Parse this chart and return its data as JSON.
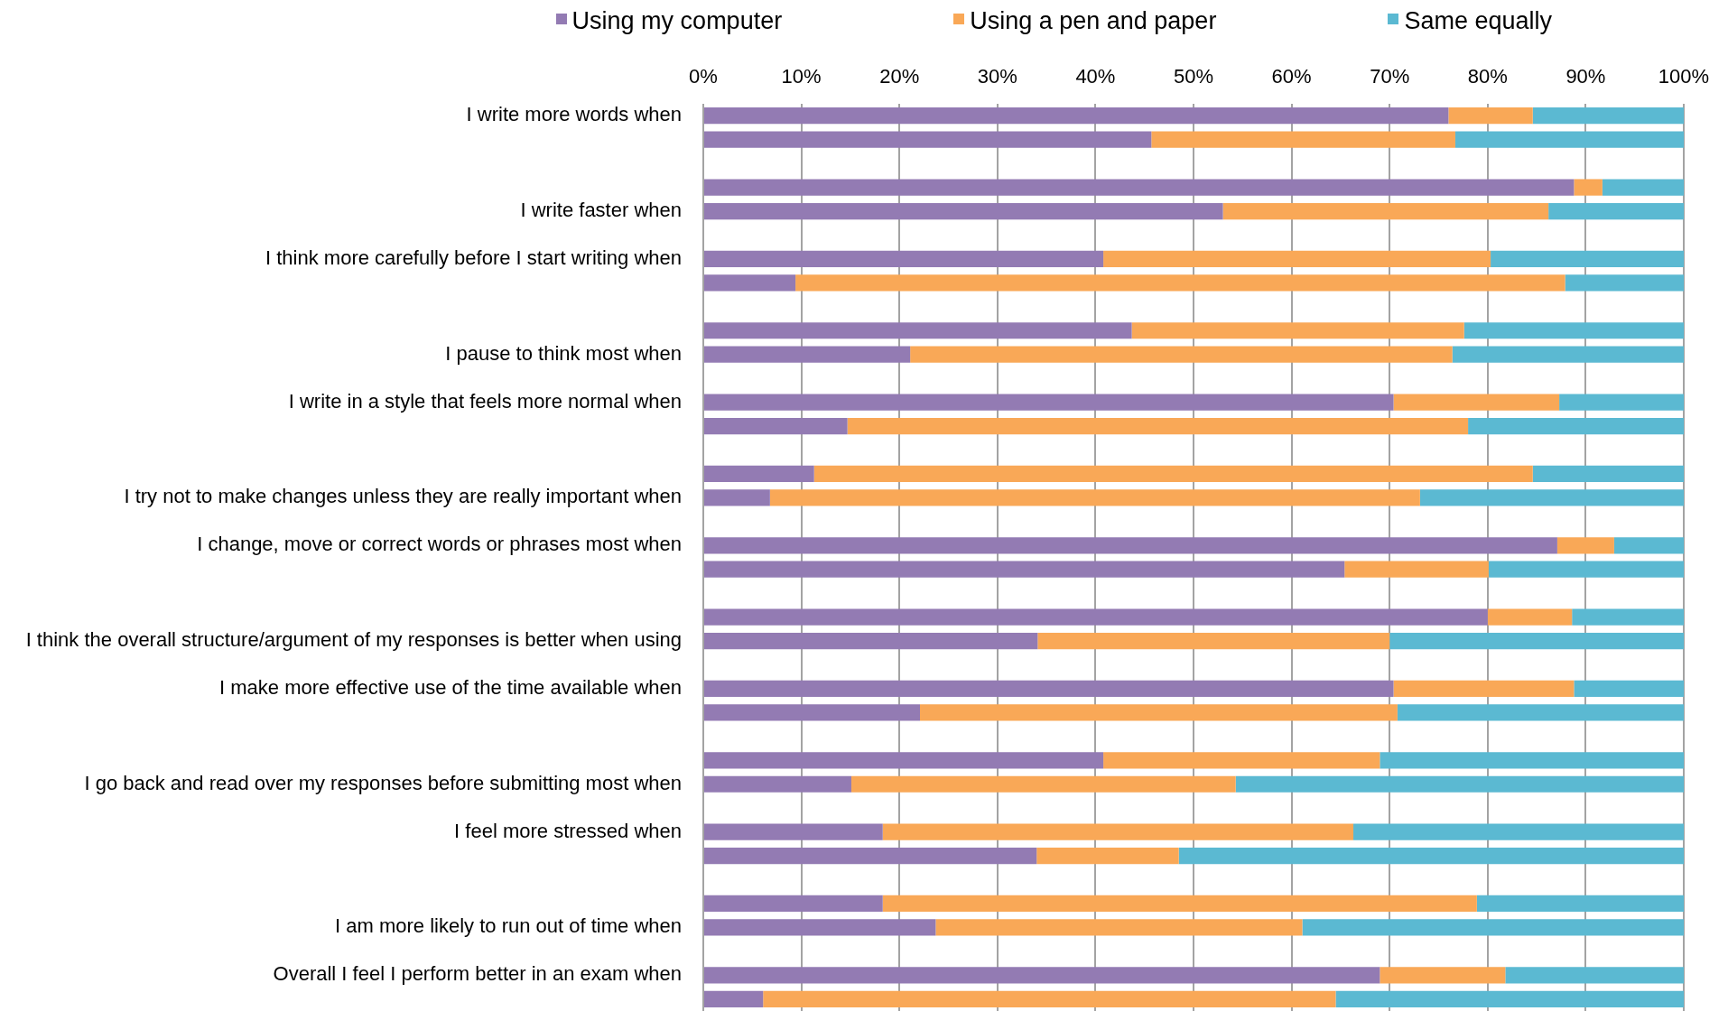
{
  "chart_data": {
    "type": "bar",
    "orientation": "horizontal",
    "stacked": true,
    "categories": [
      "I write more words when",
      null,
      null,
      null,
      "I write faster when",
      null,
      "I think more carefully before I start writing when",
      null,
      null,
      null,
      "I pause to think most when",
      null,
      "I write in a style that feels more normal when",
      null,
      null,
      null,
      "I try not to make changes unless they are really important when",
      null,
      "I change, move or correct words or phrases most when",
      null,
      null,
      null,
      "I think the overall structure/argument of my responses is better when using",
      null,
      "I make more effective use of the time available when",
      null,
      null,
      null,
      "I go back and read over my responses before submitting most when",
      null,
      "I feel more stressed when",
      null,
      null,
      null,
      "I am more likely to run out of time when",
      null,
      "Overall I feel I perform better in an exam when",
      null
    ],
    "series": [
      {
        "name": "Using my computer",
        "color": "#937bb3",
        "values": [
          76.0,
          45.7,
          null,
          88.8,
          53.0,
          null,
          40.8,
          9.4,
          null,
          43.7,
          21.1,
          null,
          70.4,
          14.7,
          null,
          11.3,
          6.8,
          null,
          87.1,
          65.4,
          null,
          80.0,
          34.1,
          null,
          70.4,
          22.1,
          null,
          40.8,
          15.1,
          null,
          18.3,
          34.0,
          null,
          18.3,
          23.7,
          null,
          69.0,
          6.1
        ]
      },
      {
        "name": "Using a pen and paper",
        "color": "#f9a857",
        "values": [
          8.6,
          31.0,
          null,
          2.9,
          33.2,
          null,
          39.5,
          78.5,
          null,
          33.9,
          55.3,
          null,
          16.9,
          63.3,
          null,
          73.3,
          66.3,
          null,
          5.8,
          14.7,
          null,
          8.6,
          35.9,
          null,
          18.4,
          48.7,
          null,
          28.2,
          39.2,
          null,
          48.0,
          14.5,
          null,
          60.6,
          37.4,
          null,
          12.8,
          58.4
        ]
      },
      {
        "name": "Same equally",
        "color": "#5bb9d2",
        "values": [
          15.4,
          23.3,
          null,
          8.3,
          13.8,
          null,
          19.7,
          12.1,
          null,
          22.4,
          23.6,
          null,
          12.7,
          22.0,
          null,
          15.4,
          26.9,
          null,
          7.1,
          19.9,
          null,
          11.4,
          30.0,
          null,
          11.2,
          29.2,
          null,
          31.0,
          45.7,
          null,
          33.7,
          51.5,
          null,
          21.1,
          38.9,
          null,
          18.2,
          35.5
        ]
      }
    ],
    "xlim": [
      0,
      100
    ],
    "xticks": [
      {
        "value": 0,
        "label": "0%"
      },
      {
        "value": 10,
        "label": "10%"
      },
      {
        "value": 20,
        "label": "20%"
      },
      {
        "value": 30,
        "label": "30%"
      },
      {
        "value": 40,
        "label": "40%"
      },
      {
        "value": 50,
        "label": "50%"
      },
      {
        "value": 60,
        "label": "60%"
      },
      {
        "value": 70,
        "label": "70%"
      },
      {
        "value": 80,
        "label": "80%"
      },
      {
        "value": 90,
        "label": "90%"
      },
      {
        "value": 100,
        "label": "100%"
      }
    ],
    "grid": "x",
    "legend": "top"
  }
}
